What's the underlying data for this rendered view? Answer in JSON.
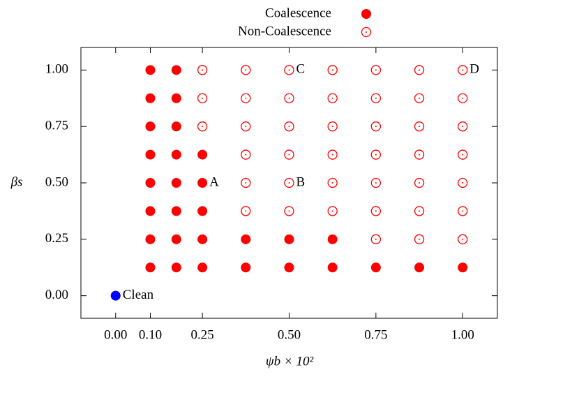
{
  "chart_data": {
    "type": "scatter",
    "x_label": "ψb × 10²",
    "y_label": "βs",
    "xlim": [
      -0.1,
      1.1
    ],
    "ylim": [
      -0.1,
      1.1
    ],
    "xticks": [
      {
        "value": 0,
        "label": "0.00"
      },
      {
        "value": 0.1,
        "label": "0.10"
      },
      {
        "value": 0.25,
        "label": "0.25"
      },
      {
        "value": 0.5,
        "label": "0.50"
      },
      {
        "value": 0.75,
        "label": "0.75"
      },
      {
        "value": 1,
        "label": "1.00"
      }
    ],
    "yticks": [
      {
        "value": 0,
        "label": "0.00"
      },
      {
        "value": 0.25,
        "label": "0.25"
      },
      {
        "value": 0.5,
        "label": "0.50"
      },
      {
        "value": 0.75,
        "label": "0.75"
      },
      {
        "value": 1,
        "label": "1.00"
      }
    ],
    "legend": "top",
    "series": [
      {
        "name": "Coalescence",
        "color": "#ff0000",
        "marker": "filled",
        "x": [
          0.1,
          0.175,
          0.1,
          0.175,
          0.1,
          0.175,
          0.1,
          0.175,
          0.25,
          0.1,
          0.175,
          0.25,
          0.1,
          0.175,
          0.25,
          0.1,
          0.175,
          0.25,
          0.375,
          0.5,
          0.625,
          0.1,
          0.175,
          0.25,
          0.375,
          0.5,
          0.625,
          0.75,
          0.875,
          1.0
        ],
        "values": [
          1.0,
          1.0,
          0.875,
          0.875,
          0.75,
          0.75,
          0.625,
          0.625,
          0.625,
          0.5,
          0.5,
          0.5,
          0.375,
          0.375,
          0.375,
          0.25,
          0.25,
          0.25,
          0.25,
          0.25,
          0.25,
          0.125,
          0.125,
          0.125,
          0.125,
          0.125,
          0.125,
          0.125,
          0.125,
          0.125
        ]
      },
      {
        "name": "Non-Coalescence",
        "color": "#ff0000",
        "marker": "open",
        "x": [
          0.25,
          0.375,
          0.5,
          0.625,
          0.75,
          0.875,
          1.0,
          0.25,
          0.375,
          0.5,
          0.625,
          0.75,
          0.875,
          1.0,
          0.25,
          0.375,
          0.5,
          0.625,
          0.75,
          0.875,
          1.0,
          0.375,
          0.5,
          0.625,
          0.75,
          0.875,
          1.0,
          0.375,
          0.5,
          0.625,
          0.75,
          0.875,
          1.0,
          0.375,
          0.5,
          0.625,
          0.75,
          0.875,
          1.0,
          0.75,
          0.875,
          1.0
        ],
        "values": [
          1.0,
          1.0,
          1.0,
          1.0,
          1.0,
          1.0,
          1.0,
          0.875,
          0.875,
          0.875,
          0.875,
          0.875,
          0.875,
          0.875,
          0.75,
          0.75,
          0.75,
          0.75,
          0.75,
          0.75,
          0.75,
          0.625,
          0.625,
          0.625,
          0.625,
          0.625,
          0.625,
          0.5,
          0.5,
          0.5,
          0.5,
          0.5,
          0.5,
          0.375,
          0.375,
          0.375,
          0.375,
          0.375,
          0.375,
          0.25,
          0.25,
          0.25
        ]
      },
      {
        "name": "Clean",
        "color": "#0000ff",
        "marker": "filled",
        "x": [
          0
        ],
        "values": [
          0
        ]
      }
    ],
    "annotations": [
      {
        "text": "A",
        "x": 0.25,
        "y": 0.5
      },
      {
        "text": "B",
        "x": 0.5,
        "y": 0.5
      },
      {
        "text": "C",
        "x": 0.5,
        "y": 1.0
      },
      {
        "text": "D",
        "x": 1.0,
        "y": 1.0
      }
    ]
  }
}
